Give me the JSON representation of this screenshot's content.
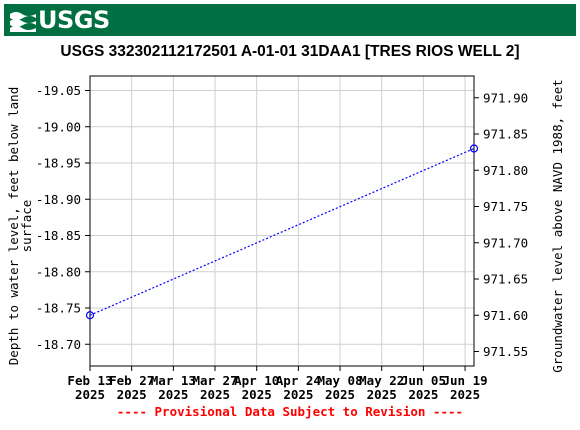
{
  "header": {
    "logo_text": "USGS",
    "brand_color": "#006f41"
  },
  "chart_data": {
    "type": "line",
    "title": "USGS 332302112172501 A-01-01 31DAA1 [TRES RIOS WELL 2]",
    "ylabel_left": "Depth to water level, feet below land surface",
    "ylabel_right": "Groundwater level above NAVD 1988, feet",
    "xlabel": "",
    "footer_note": "---- Provisional Data Subject to Revision ----",
    "left_axis": {
      "ylim": [
        -19.07,
        -18.67
      ],
      "inverted": true,
      "ticks": [
        -19.05,
        -19.0,
        -18.95,
        -18.9,
        -18.85,
        -18.8,
        -18.75,
        -18.7
      ],
      "tick_labels": [
        "-19.05",
        "-19.00",
        "-18.95",
        "-18.90",
        "-18.85",
        "-18.80",
        "-18.75",
        "-18.70"
      ]
    },
    "right_axis": {
      "ylim": [
        971.53,
        971.93
      ],
      "ticks": [
        971.55,
        971.6,
        971.65,
        971.7,
        971.75,
        971.8,
        971.85,
        971.9
      ],
      "tick_labels": [
        "971.55",
        "971.60",
        "971.65",
        "971.70",
        "971.75",
        "971.80",
        "971.85",
        "971.90"
      ]
    },
    "x_axis": {
      "range": [
        "2025-02-13",
        "2025-06-22"
      ],
      "ticks": [
        {
          "date": "2025-02-13",
          "line1": "Feb 13",
          "line2": "2025"
        },
        {
          "date": "2025-02-27",
          "line1": "Feb 27",
          "line2": "2025"
        },
        {
          "date": "2025-03-13",
          "line1": "Mar 13",
          "line2": "2025"
        },
        {
          "date": "2025-03-27",
          "line1": "Mar 27",
          "line2": "2025"
        },
        {
          "date": "2025-04-10",
          "line1": "Apr 10",
          "line2": "2025"
        },
        {
          "date": "2025-04-24",
          "line1": "Apr 24",
          "line2": "2025"
        },
        {
          "date": "2025-05-08",
          "line1": "May 08",
          "line2": "2025"
        },
        {
          "date": "2025-05-22",
          "line1": "May 22",
          "line2": "2025"
        },
        {
          "date": "2025-06-05",
          "line1": "Jun 05",
          "line2": "2025"
        },
        {
          "date": "2025-06-19",
          "line1": "Jun 19",
          "line2": "2025"
        }
      ]
    },
    "series": [
      {
        "points": [
          {
            "x": "2025-02-13",
            "y": -18.74
          },
          {
            "x": "2025-06-22",
            "y": -18.97
          }
        ]
      }
    ],
    "grid": true,
    "colors": {
      "series": "#0000ff",
      "footer": "#ff0000",
      "grid": "#d0d0d0"
    }
  }
}
